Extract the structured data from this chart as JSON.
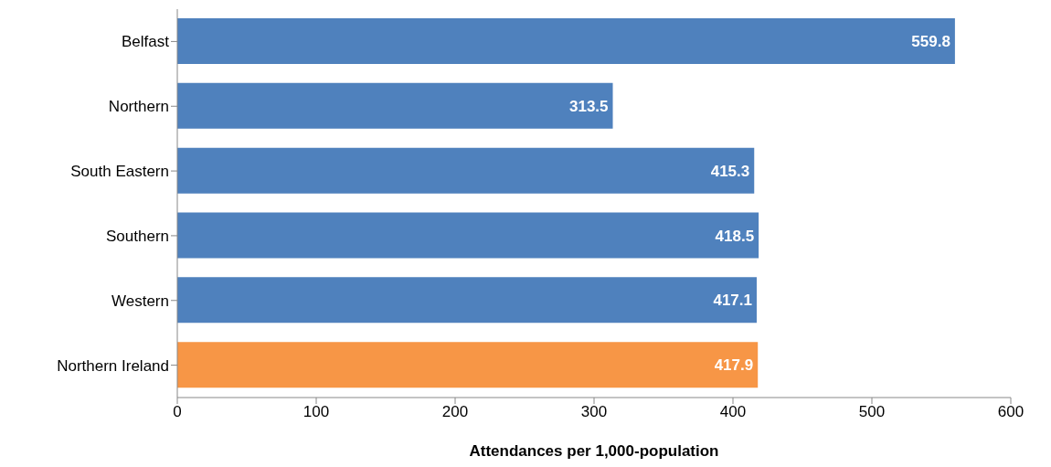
{
  "chart_data": {
    "type": "bar",
    "orientation": "horizontal",
    "xlabel": "Attendances per 1,000-population",
    "categories": [
      "Belfast",
      "Northern",
      "South Eastern",
      "Southern",
      "Western",
      "Northern Ireland"
    ],
    "values": [
      559.8,
      313.5,
      415.3,
      418.5,
      417.1,
      417.9
    ],
    "colors": [
      "#4f81bd",
      "#4f81bd",
      "#4f81bd",
      "#4f81bd",
      "#4f81bd",
      "#f79646"
    ],
    "xlim": [
      0,
      600
    ],
    "xticks": [
      0,
      100,
      200,
      300,
      400,
      500,
      600
    ],
    "grid": false,
    "data_labels": true
  }
}
